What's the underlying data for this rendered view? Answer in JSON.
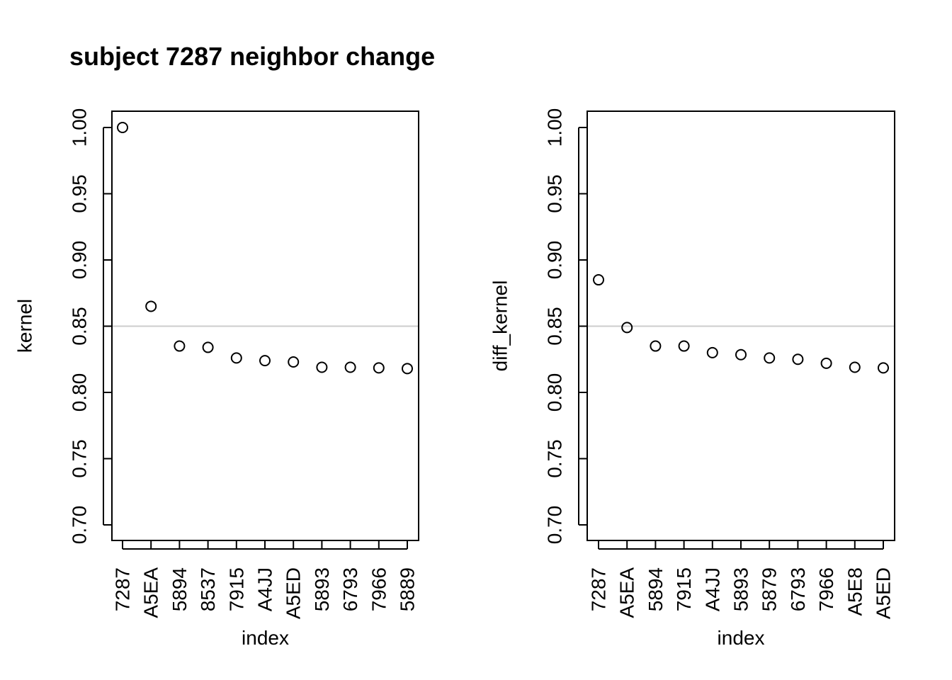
{
  "title": "subject 7287 neighbor change",
  "chart_data": [
    {
      "type": "scatter",
      "title": "subject 7287 neighbor change",
      "xlabel": "index",
      "ylabel": "kernel",
      "categories": [
        "7287",
        "A5EA",
        "5894",
        "8537",
        "7915",
        "A4JJ",
        "A5ED",
        "5893",
        "6793",
        "7966",
        "5889"
      ],
      "values": [
        1.0,
        0.865,
        0.835,
        0.834,
        0.826,
        0.824,
        0.823,
        0.819,
        0.819,
        0.8185,
        0.818
      ],
      "ylim": [
        0.7,
        1.0
      ],
      "yticks": [
        "0.70",
        "0.75",
        "0.80",
        "0.85",
        "0.90",
        "0.95",
        "1.00"
      ],
      "hline": 0.85,
      "marker": "open-circle",
      "hline_color": "#cccccc",
      "grid": false
    },
    {
      "type": "scatter",
      "title": "",
      "xlabel": "index",
      "ylabel": "diff_kernel",
      "categories": [
        "7287",
        "A5EA",
        "5894",
        "7915",
        "A4JJ",
        "5893",
        "5879",
        "6793",
        "7966",
        "A5E8",
        "A5ED"
      ],
      "values": [
        0.885,
        0.849,
        0.835,
        0.835,
        0.83,
        0.8285,
        0.826,
        0.825,
        0.822,
        0.819,
        0.8185
      ],
      "ylim": [
        0.7,
        1.0
      ],
      "yticks": [
        "0.70",
        "0.75",
        "0.80",
        "0.85",
        "0.90",
        "0.95",
        "1.00"
      ],
      "hline": 0.85,
      "marker": "open-circle",
      "hline_color": "#cccccc",
      "grid": false
    }
  ]
}
